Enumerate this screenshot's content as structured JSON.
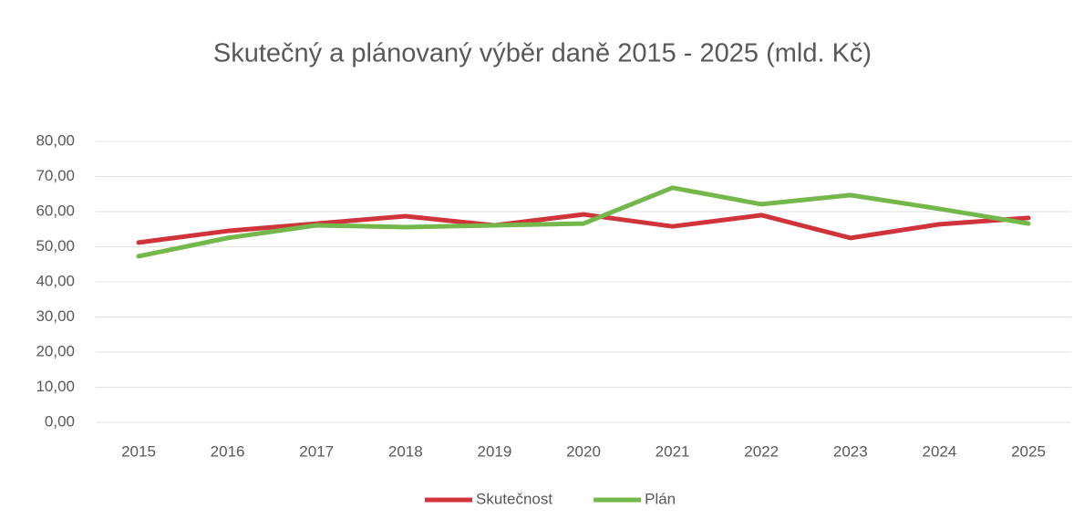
{
  "chart_data": {
    "type": "line",
    "title": "Skutečný a plánovaný výběr daně 2015 - 2025 (mld. Kč)",
    "categories": [
      "2015",
      "2016",
      "2017",
      "2018",
      "2019",
      "2020",
      "2021",
      "2022",
      "2023",
      "2024",
      "2025"
    ],
    "series": [
      {
        "name": "Skutečnost",
        "color": "#d0343a",
        "values": [
          51.2,
          54.5,
          56.6,
          58.7,
          56.1,
          59.2,
          55.8,
          59.0,
          52.5,
          56.4,
          58.2
        ]
      },
      {
        "name": "Plán",
        "color": "#74b74a",
        "values": [
          47.3,
          52.5,
          56.1,
          55.6,
          56.1,
          56.6,
          66.8,
          62.1,
          64.7,
          60.8,
          56.6
        ]
      }
    ],
    "ylim": [
      0,
      80
    ],
    "yticks": [
      {
        "value": 0,
        "label": "0,00"
      },
      {
        "value": 10,
        "label": "10,00"
      },
      {
        "value": 20,
        "label": "20,00"
      },
      {
        "value": 30,
        "label": "30,00"
      },
      {
        "value": 40,
        "label": "40,00"
      },
      {
        "value": 50,
        "label": "50,00"
      },
      {
        "value": 60,
        "label": "60,00"
      },
      {
        "value": 70,
        "label": "70,00"
      },
      {
        "value": 80,
        "label": "80,00"
      }
    ],
    "grid": true,
    "legend": "bottom"
  }
}
